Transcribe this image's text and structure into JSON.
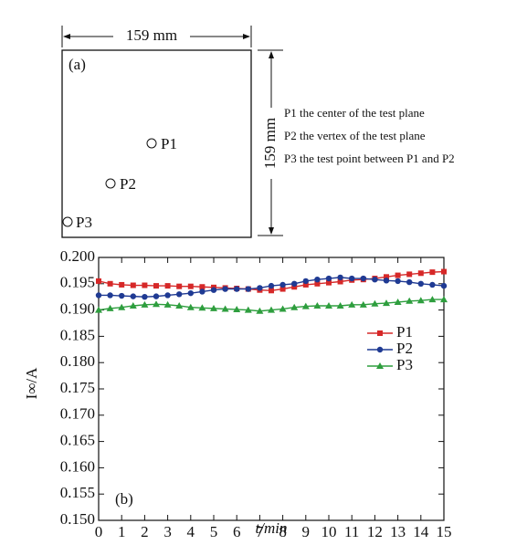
{
  "diagram": {
    "panel_label": "(a)",
    "width_label": "159 mm",
    "height_label": "159 mm",
    "points": [
      {
        "label": "P1"
      },
      {
        "label": "P2"
      },
      {
        "label": "P3"
      }
    ],
    "notes": [
      "P1 the center of the test plane",
      "P2 the vertex of the test plane",
      "P3 the test point between P1 and P2"
    ]
  },
  "chart_data": {
    "type": "line",
    "panel_label": "(b)",
    "x_label": "t/min",
    "y_label": "I∞/A",
    "x": [
      0,
      0.5,
      1,
      1.5,
      2,
      2.5,
      3,
      3.5,
      4,
      4.5,
      5,
      5.5,
      6,
      6.5,
      7,
      7.5,
      8,
      8.5,
      9,
      9.5,
      10,
      10.5,
      11,
      11.5,
      12,
      12.5,
      13,
      13.5,
      14,
      14.5,
      15
    ],
    "series": [
      {
        "name": "P1",
        "color": "#d62828",
        "marker": "square",
        "values": [
          0.1955,
          0.195,
          0.1948,
          0.1947,
          0.1947,
          0.1946,
          0.1946,
          0.1945,
          0.1945,
          0.1944,
          0.1943,
          0.1942,
          0.1941,
          0.194,
          0.1938,
          0.1937,
          0.194,
          0.1944,
          0.1948,
          0.195,
          0.1952,
          0.1954,
          0.1957,
          0.1958,
          0.196,
          0.1963,
          0.1966,
          0.1968,
          0.197,
          0.1972,
          0.1973
        ]
      },
      {
        "name": "P2",
        "color": "#1f3a93",
        "marker": "circle",
        "values": [
          0.1928,
          0.1928,
          0.1927,
          0.1926,
          0.1925,
          0.1926,
          0.1928,
          0.193,
          0.1932,
          0.1935,
          0.1938,
          0.194,
          0.194,
          0.194,
          0.1942,
          0.1946,
          0.1948,
          0.195,
          0.1955,
          0.1958,
          0.196,
          0.1962,
          0.196,
          0.196,
          0.1958,
          0.1956,
          0.1955,
          0.1953,
          0.195,
          0.1948,
          0.1946
        ]
      },
      {
        "name": "P3",
        "color": "#2e9e3e",
        "marker": "triangle",
        "values": [
          0.19,
          0.1903,
          0.1905,
          0.1908,
          0.191,
          0.1911,
          0.191,
          0.1908,
          0.1905,
          0.1904,
          0.1903,
          0.1902,
          0.1901,
          0.19,
          0.1898,
          0.19,
          0.1902,
          0.1905,
          0.1907,
          0.1908,
          0.1908,
          0.1908,
          0.191,
          0.191,
          0.1912,
          0.1913,
          0.1915,
          0.1917,
          0.1918,
          0.192,
          0.192
        ]
      }
    ],
    "xlim": [
      0,
      15
    ],
    "xticks": [
      0,
      1,
      2,
      3,
      4,
      5,
      6,
      7,
      8,
      9,
      10,
      11,
      12,
      13,
      14,
      15
    ],
    "ylim": [
      0.15,
      0.2
    ],
    "yticks": [
      {
        "value": 0.15,
        "label": "0.150"
      },
      {
        "value": 0.155,
        "label": "0.155"
      },
      {
        "value": 0.16,
        "label": "0.160"
      },
      {
        "value": 0.165,
        "label": "0.165"
      },
      {
        "value": 0.17,
        "label": "0.170"
      },
      {
        "value": 0.175,
        "label": "0.175"
      },
      {
        "value": 0.18,
        "label": "0.180"
      },
      {
        "value": 0.185,
        "label": "0.185"
      },
      {
        "value": 0.19,
        "label": "0.190"
      },
      {
        "value": 0.195,
        "label": "0.195"
      },
      {
        "value": 0.2,
        "label": "0.200"
      }
    ],
    "legend": "right",
    "grid": false
  }
}
